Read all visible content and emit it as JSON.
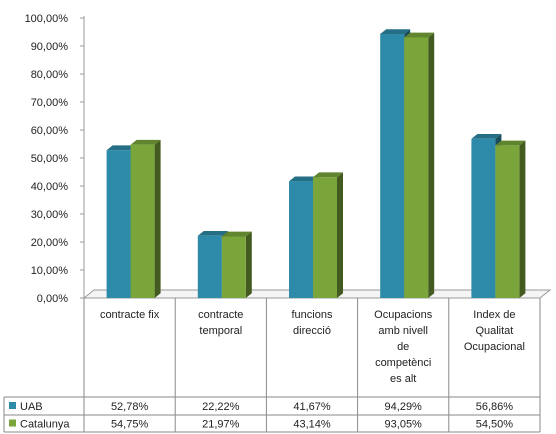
{
  "chart_data": {
    "type": "bar",
    "categories": [
      "contracte fix",
      "contracte temporal",
      "funcions direcció",
      "Ocupacions amb nivell de competències alt",
      "Index de Qualitat Ocupacional"
    ],
    "category_lines": [
      [
        "contracte fix"
      ],
      [
        "contracte",
        "temporal"
      ],
      [
        "funcions",
        "direcció"
      ],
      [
        "Ocupacions",
        "amb nivell",
        "de",
        "competènci",
        "es alt"
      ],
      [
        "Index de",
        "Qualitat",
        "Ocupacional"
      ]
    ],
    "series": [
      {
        "name": "UAB",
        "values": [
          52.78,
          22.22,
          41.67,
          94.29,
          56.86
        ],
        "labels": [
          "52,78%",
          "22,22%",
          "41,67%",
          "94,29%",
          "56,86%"
        ],
        "color": "#2d8aa8"
      },
      {
        "name": "Catalunya",
        "values": [
          54.75,
          21.97,
          43.14,
          93.05,
          54.5
        ],
        "labels": [
          "54,75%",
          "21,97%",
          "43,14%",
          "93,05%",
          "54,50%"
        ],
        "color": "#79a53a"
      }
    ],
    "y_ticks": [
      "0,00%",
      "10,00%",
      "20,00%",
      "30,00%",
      "40,00%",
      "50,00%",
      "60,00%",
      "70,00%",
      "80,00%",
      "90,00%",
      "100,00%"
    ],
    "ylim": [
      0,
      100
    ],
    "grid": false,
    "legend": "data-table"
  }
}
